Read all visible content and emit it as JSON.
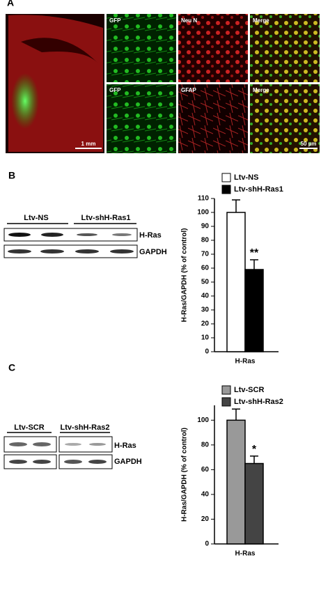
{
  "panel_a": {
    "label": "A",
    "scale_bar_large": "1 mm",
    "scale_bar_small": "50 µm",
    "row1": [
      "GFP",
      "Neu N",
      "Merge"
    ],
    "row2": [
      "GFP",
      "GFAP",
      "Merge"
    ]
  },
  "panel_b": {
    "label": "B",
    "blot_groups": [
      "Ltv-NS",
      "Ltv-shH-Ras1"
    ],
    "blot_rows": [
      "H-Ras",
      "GAPDH"
    ]
  },
  "panel_c": {
    "label": "C",
    "blot_groups": [
      "Ltv-SCR",
      "Ltv-shH-Ras2"
    ],
    "blot_rows": [
      "H-Ras",
      "GAPDH"
    ]
  },
  "chart_data": [
    {
      "type": "bar",
      "y_label": "H-Ras/GAPDH (% of control)",
      "categories": [
        "H-Ras"
      ],
      "legend": "top",
      "series": [
        {
          "name": "Ltv-NS",
          "color": "#ffffff",
          "values": [
            100
          ],
          "errors": [
            9
          ]
        },
        {
          "name": "Ltv-shH-Ras1",
          "color": "#000000",
          "values": [
            59
          ],
          "errors": [
            7
          ],
          "marker": "**"
        }
      ],
      "ylim": [
        0,
        110
      ],
      "yticks": [
        0,
        10,
        20,
        30,
        40,
        50,
        60,
        70,
        80,
        90,
        100,
        110
      ]
    },
    {
      "type": "bar",
      "y_label": "H-Ras/GAPDH (% of control)",
      "categories": [
        "H-Ras"
      ],
      "legend": "top",
      "series": [
        {
          "name": "Ltv-SCR",
          "color": "#999999",
          "values": [
            100
          ],
          "errors": [
            9
          ]
        },
        {
          "name": "Ltv-shH-Ras2",
          "color": "#444444",
          "values": [
            65
          ],
          "errors": [
            6
          ],
          "marker": "*"
        }
      ],
      "ylim": [
        0,
        112
      ],
      "yticks": [
        0,
        20,
        40,
        60,
        80,
        100
      ]
    }
  ]
}
